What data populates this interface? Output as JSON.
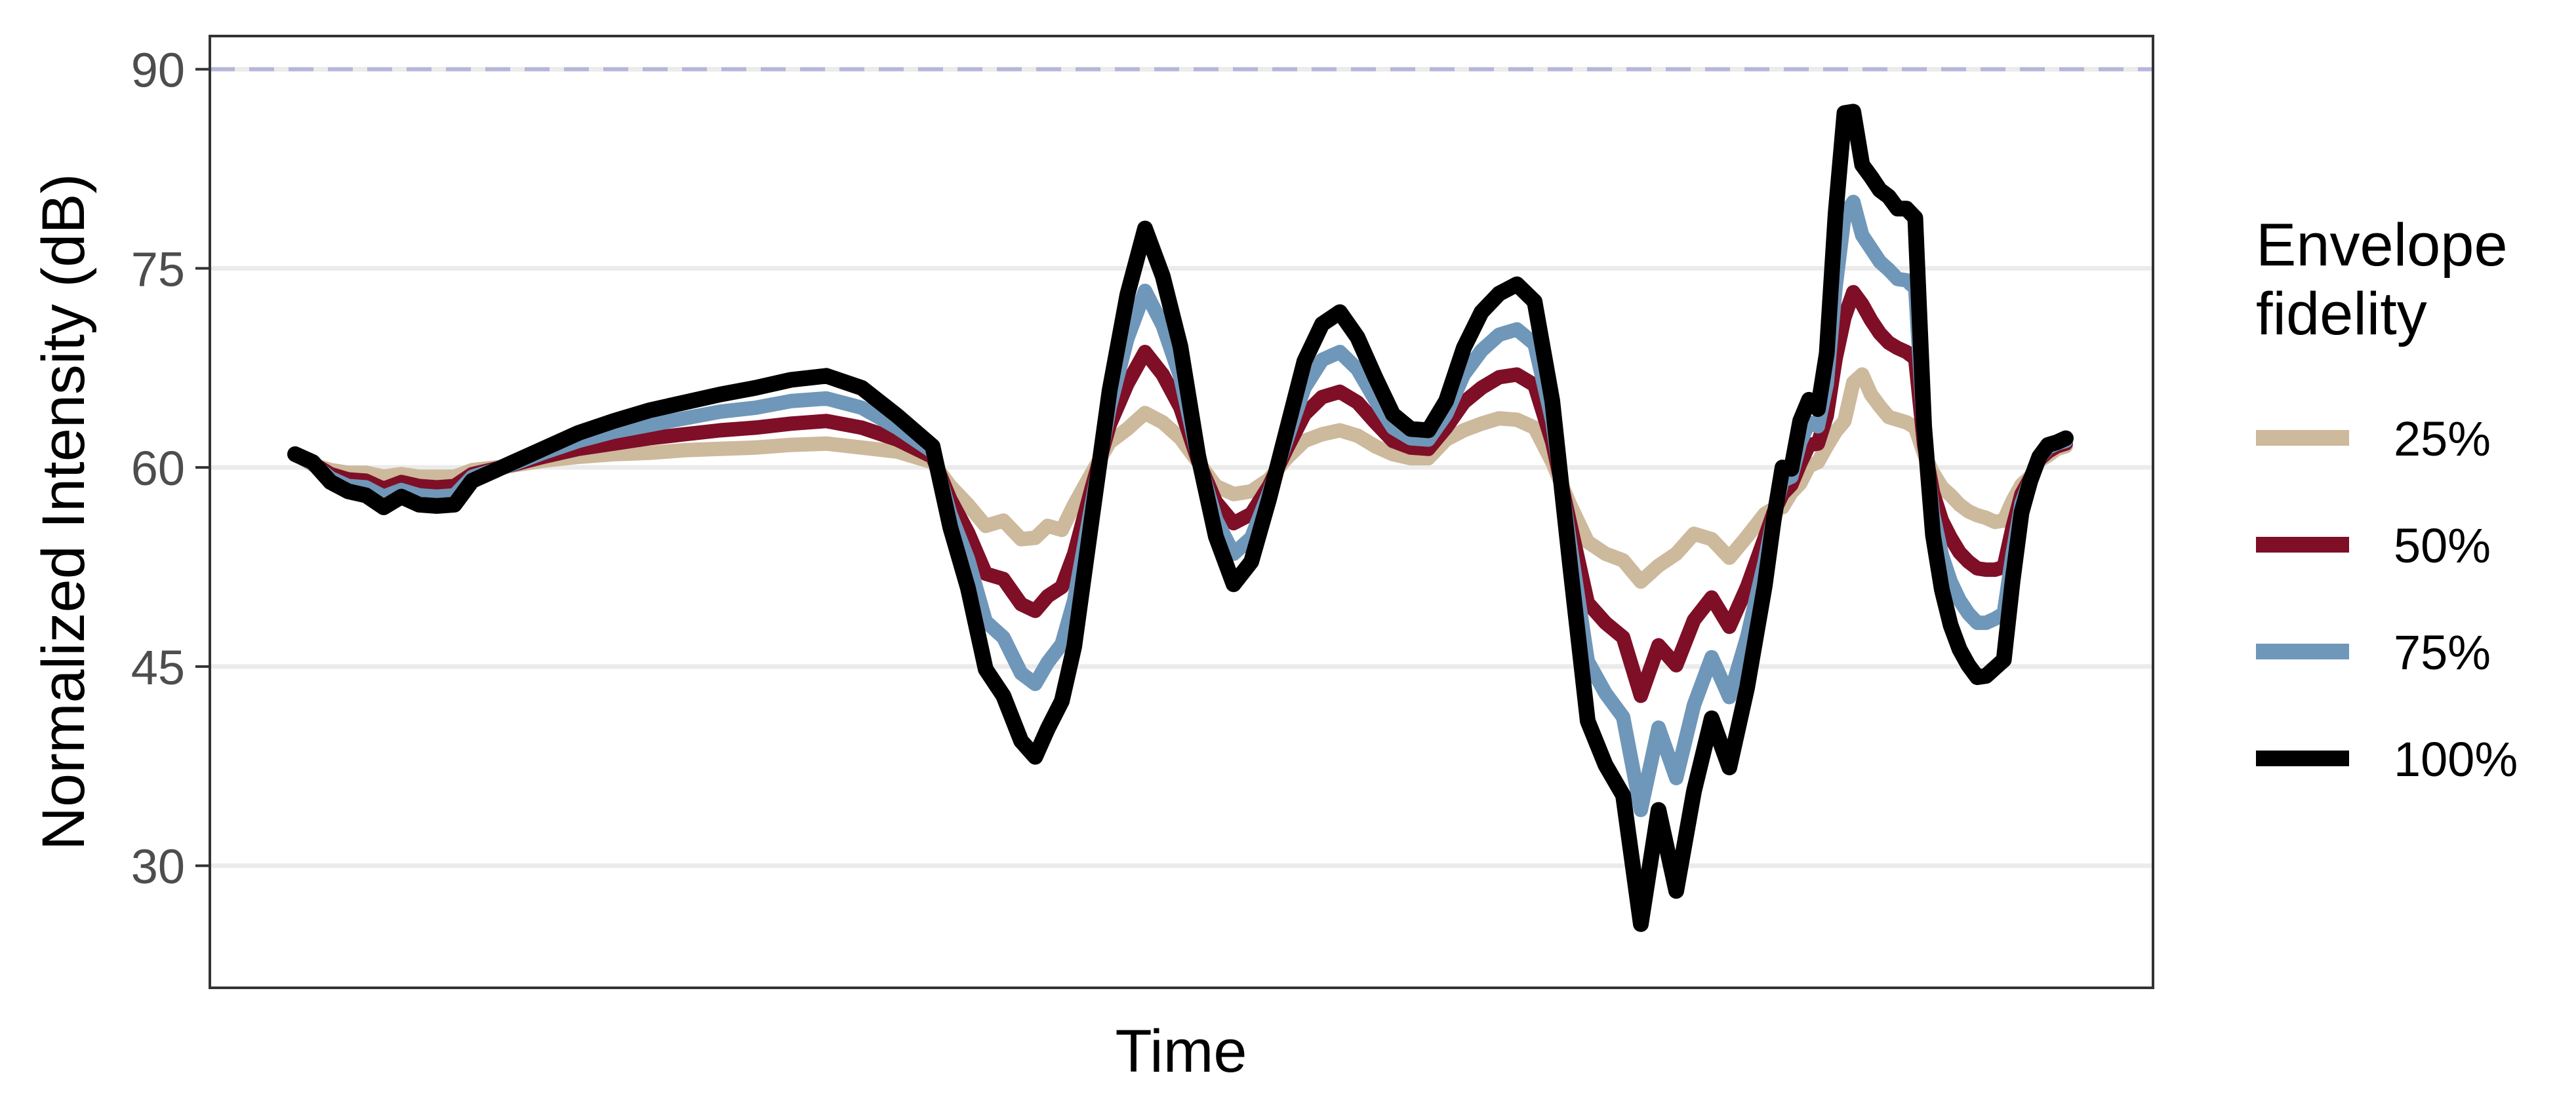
{
  "chart_data": {
    "type": "line",
    "title": "",
    "xlabel": "Time",
    "ylabel": "Normalized Intensity (dB)",
    "ylim": [
      20.8,
      92.5
    ],
    "xlim": [
      0,
      100
    ],
    "yticks": [
      30,
      45,
      60,
      75,
      90
    ],
    "x_ticks_shown": false,
    "grid": "horizontal major lines only",
    "reference_line": {
      "y": 90,
      "style": "dashed",
      "color": "#b4b6da"
    },
    "legend": {
      "title": "Envelope fidelity",
      "title_lines": [
        "Envelope",
        "fidelity"
      ],
      "position": "right"
    },
    "x": [
      0,
      1,
      2,
      3,
      4,
      5,
      6,
      7,
      8,
      9,
      10,
      12,
      14,
      16,
      18,
      20,
      22,
      24,
      26,
      28,
      30,
      32,
      34,
      36,
      37,
      38,
      39,
      40,
      41,
      41.8,
      42.5,
      43.3,
      44,
      45,
      46,
      47,
      48,
      49,
      50,
      51,
      52,
      53,
      54,
      55,
      56,
      57,
      58,
      59,
      60,
      61,
      62,
      63,
      64,
      65,
      66,
      67,
      68,
      69,
      70,
      71,
      72,
      73,
      74,
      75,
      76,
      77,
      78,
      79,
      80,
      81,
      82,
      83,
      83.5,
      84,
      84.5,
      85,
      85.5,
      86,
      86.5,
      87,
      87.5,
      88,
      88.5,
      89,
      89.5,
      90,
      90.5,
      91,
      91.5,
      92,
      92.5,
      93,
      93.5,
      94,
      94.5,
      95,
      95.5,
      96,
      96.5,
      97,
      97.5,
      98,
      98.5,
      99,
      99.5,
      100
    ],
    "series": [
      {
        "name": "25%",
        "color": "#cdb99c",
        "values": [
          61.0,
          60.2,
          59.8,
          59.6,
          59.6,
          59.3,
          59.5,
          59.3,
          59.3,
          59.3,
          59.8,
          60.1,
          60.5,
          60.8,
          61.0,
          61.1,
          61.3,
          61.4,
          61.5,
          61.7,
          61.8,
          61.5,
          61.2,
          60.4,
          58.6,
          57.2,
          55.6,
          56.0,
          54.6,
          54.7,
          55.6,
          55.3,
          57.2,
          59.6,
          61.9,
          62.9,
          64.1,
          63.4,
          62.2,
          60.4,
          58.6,
          58.0,
          58.2,
          59.1,
          60.7,
          62.0,
          62.5,
          62.8,
          62.4,
          61.6,
          61.0,
          60.7,
          60.7,
          62.1,
          62.8,
          63.3,
          63.7,
          63.6,
          63.0,
          60.4,
          57.2,
          54.4,
          53.5,
          53.0,
          51.4,
          52.6,
          53.5,
          55.0,
          54.6,
          53.2,
          54.8,
          56.5,
          56.9,
          57.0,
          58.1,
          58.8,
          60.1,
          60.4,
          61.6,
          62.7,
          63.5,
          66.4,
          67.0,
          65.5,
          64.6,
          63.8,
          63.6,
          63.4,
          63.0,
          61.0,
          59.6,
          58.5,
          57.9,
          57.2,
          56.7,
          56.4,
          56.2,
          55.9,
          56.0,
          57.5,
          58.7,
          59.3,
          60.5,
          60.9,
          61.4,
          61.6
        ]
      },
      {
        "name": "50%",
        "color": "#7f0f26",
        "values": [
          61.0,
          60.3,
          59.5,
          59.1,
          59.0,
          58.4,
          58.9,
          58.6,
          58.5,
          58.6,
          59.5,
          60.1,
          60.8,
          61.4,
          61.8,
          62.2,
          62.5,
          62.8,
          63.0,
          63.3,
          63.5,
          63.0,
          62.1,
          60.8,
          57.6,
          55.1,
          52.0,
          51.6,
          49.7,
          49.2,
          50.3,
          51.0,
          53.5,
          58.5,
          63.2,
          66.3,
          68.7,
          67.0,
          64.5,
          60.5,
          57.4,
          55.8,
          56.5,
          58.6,
          61.4,
          64.0,
          65.3,
          65.7,
          64.9,
          63.4,
          62.0,
          61.5,
          61.4,
          63.0,
          64.9,
          66.0,
          66.8,
          67.0,
          66.2,
          61.9,
          55.8,
          49.8,
          48.3,
          47.2,
          42.8,
          46.6,
          45.1,
          48.5,
          50.2,
          48.0,
          51.0,
          54.7,
          56.6,
          58.0,
          58.7,
          60.3,
          61.7,
          61.8,
          63.9,
          68.2,
          71.3,
          73.2,
          72.3,
          71.1,
          70.1,
          69.4,
          69.0,
          68.7,
          68.2,
          61.7,
          58.1,
          56.0,
          54.7,
          53.6,
          52.9,
          52.4,
          52.3,
          52.3,
          52.5,
          55.5,
          58.0,
          59.2,
          60.6,
          61.2,
          61.6,
          61.8
        ]
      },
      {
        "name": "75%",
        "color": "#6f97b9",
        "values": [
          61.0,
          60.3,
          59.2,
          58.6,
          58.5,
          57.8,
          58.3,
          57.9,
          57.8,
          57.9,
          59.3,
          60.1,
          61.1,
          62.0,
          62.7,
          63.2,
          63.7,
          64.2,
          64.5,
          65.0,
          65.2,
          64.5,
          63.0,
          61.2,
          56.5,
          53.1,
          48.4,
          47.2,
          44.5,
          43.7,
          45.3,
          46.7,
          50.0,
          57.3,
          64.5,
          69.7,
          73.3,
          70.7,
          66.8,
          60.7,
          56.1,
          53.5,
          54.7,
          58.1,
          62.1,
          66.0,
          68.1,
          68.7,
          67.4,
          65.1,
          63.0,
          62.2,
          62.1,
          64.0,
          67.0,
          68.8,
          70.0,
          70.4,
          69.3,
          63.5,
          54.3,
          45.4,
          43.0,
          41.2,
          34.2,
          40.4,
          36.6,
          42.1,
          45.7,
          42.7,
          47.2,
          52.9,
          56.3,
          59.0,
          59.3,
          61.9,
          63.4,
          63.1,
          66.3,
          73.6,
          79.0,
          80.0,
          77.5,
          76.5,
          75.5,
          74.9,
          74.2,
          74.1,
          73.5,
          62.4,
          56.5,
          53.4,
          51.4,
          50.0,
          49.0,
          48.3,
          48.3,
          48.6,
          49.0,
          53.5,
          57.3,
          59.1,
          60.7,
          61.5,
          61.8,
          62.0
        ]
      },
      {
        "name": "100%",
        "color": "#000000",
        "values": [
          61.0,
          60.4,
          58.9,
          58.2,
          57.9,
          57.0,
          57.8,
          57.2,
          57.1,
          57.2,
          59.0,
          60.2,
          61.4,
          62.6,
          63.5,
          64.3,
          64.9,
          65.5,
          66.0,
          66.6,
          66.9,
          66.0,
          63.9,
          61.6,
          55.5,
          50.9,
          44.8,
          42.8,
          39.4,
          38.2,
          40.3,
          42.4,
          46.5,
          56.2,
          65.8,
          73.0,
          78.0,
          74.4,
          69.1,
          60.9,
          54.8,
          51.2,
          52.9,
          57.6,
          62.8,
          68.0,
          70.8,
          71.7,
          69.8,
          66.8,
          64.0,
          62.9,
          62.8,
          65.0,
          69.0,
          71.7,
          73.1,
          73.8,
          72.5,
          65.0,
          52.7,
          40.9,
          37.6,
          35.3,
          25.6,
          34.2,
          28.1,
          35.6,
          41.1,
          37.4,
          43.4,
          51.1,
          56.0,
          60.0,
          59.9,
          63.5,
          65.1,
          64.4,
          68.6,
          79.1,
          86.7,
          86.8,
          82.8,
          81.9,
          80.9,
          80.4,
          79.5,
          79.5,
          78.8,
          63.1,
          54.9,
          50.8,
          48.1,
          46.3,
          45.1,
          44.2,
          44.3,
          44.9,
          45.5,
          51.5,
          56.6,
          59.0,
          60.8,
          61.7,
          61.9,
          62.2
        ]
      }
    ]
  }
}
